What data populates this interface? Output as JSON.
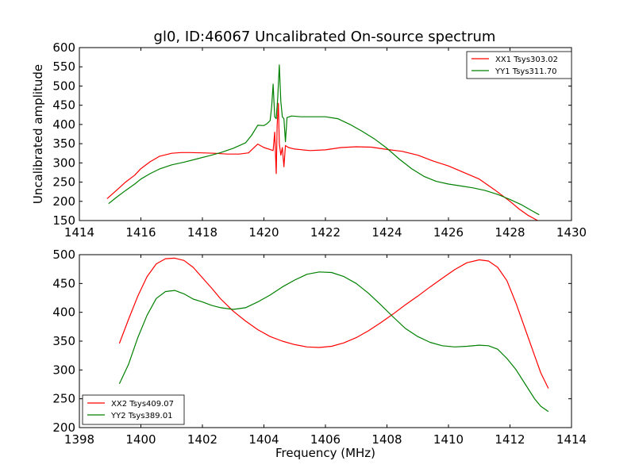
{
  "figure": {
    "title": "gl0, ID:46067 Uncalibrated On-source spectrum"
  },
  "chart_data": [
    {
      "type": "line",
      "title": "gl0, ID:46067 Uncalibrated On-source spectrum",
      "xlabel": "",
      "ylabel": "Uncalibrated amplitude",
      "xlim": [
        1414,
        1430
      ],
      "ylim": [
        150,
        600
      ],
      "xticks": [
        1414,
        1416,
        1418,
        1420,
        1422,
        1424,
        1426,
        1428,
        1430
      ],
      "yticks": [
        150,
        200,
        250,
        300,
        350,
        400,
        450,
        500,
        550,
        600
      ],
      "grid": false,
      "legend_position": "top-right",
      "series": [
        {
          "name": "XX1 Tsys303.02",
          "color": "#ff0000",
          "x": [
            1414.9,
            1415.2,
            1415.5,
            1415.8,
            1416.0,
            1416.3,
            1416.6,
            1417.0,
            1417.3,
            1417.6,
            1418.0,
            1418.4,
            1418.8,
            1419.2,
            1419.5,
            1419.8,
            1420.0,
            1420.2,
            1420.3,
            1420.35,
            1420.4,
            1420.43,
            1420.47,
            1420.5,
            1420.55,
            1420.6,
            1420.65,
            1420.7,
            1420.8,
            1421.0,
            1421.5,
            1422.0,
            1422.5,
            1423.0,
            1423.5,
            1424.0,
            1424.5,
            1425.0,
            1425.5,
            1426.0,
            1426.5,
            1427.0,
            1427.5,
            1428.0,
            1428.3,
            1428.6,
            1428.9
          ],
          "y": [
            207,
            228,
            250,
            268,
            285,
            303,
            317,
            325,
            327,
            327,
            326,
            325,
            323,
            323,
            326,
            349,
            340,
            335,
            332,
            380,
            272,
            400,
            455,
            350,
            320,
            340,
            290,
            345,
            340,
            336,
            332,
            334,
            340,
            342,
            341,
            335,
            330,
            320,
            305,
            292,
            275,
            258,
            230,
            200,
            180,
            163,
            150
          ]
        },
        {
          "name": "YY1 Tsys311.70",
          "color": "#008000",
          "x": [
            1414.95,
            1415.2,
            1415.5,
            1415.8,
            1416.0,
            1416.3,
            1416.6,
            1417.0,
            1417.4,
            1417.8,
            1418.2,
            1418.6,
            1419.0,
            1419.4,
            1419.6,
            1419.8,
            1420.0,
            1420.1,
            1420.2,
            1420.25,
            1420.3,
            1420.35,
            1420.4,
            1420.45,
            1420.5,
            1420.55,
            1420.6,
            1420.65,
            1420.7,
            1420.75,
            1420.9,
            1421.2,
            1421.6,
            1422.0,
            1422.4,
            1422.8,
            1423.2,
            1423.6,
            1424.0,
            1424.4,
            1424.8,
            1425.2,
            1425.6,
            1426.0,
            1426.4,
            1426.8,
            1427.2,
            1427.6,
            1428.0,
            1428.4,
            1428.7,
            1428.95
          ],
          "y": [
            194,
            210,
            228,
            245,
            258,
            272,
            284,
            295,
            302,
            310,
            318,
            327,
            338,
            352,
            372,
            398,
            397,
            402,
            410,
            445,
            505,
            420,
            415,
            470,
            555,
            460,
            420,
            415,
            355,
            418,
            422,
            420,
            420,
            420,
            415,
            400,
            382,
            362,
            338,
            310,
            285,
            265,
            252,
            245,
            240,
            235,
            228,
            218,
            205,
            190,
            176,
            165
          ]
        }
      ]
    },
    {
      "type": "line",
      "title": "",
      "xlabel": "Frequency (MHz)",
      "ylabel": "",
      "xlim": [
        1398,
        1414
      ],
      "ylim": [
        200,
        500
      ],
      "xticks": [
        1398,
        1400,
        1402,
        1404,
        1406,
        1408,
        1410,
        1412,
        1414
      ],
      "yticks": [
        200,
        250,
        300,
        350,
        400,
        450,
        500
      ],
      "grid": false,
      "legend_position": "bottom-left",
      "series": [
        {
          "name": "XX2 Tsys409.07",
          "color": "#ff0000",
          "x": [
            1399.3,
            1399.6,
            1399.9,
            1400.2,
            1400.5,
            1400.8,
            1401.1,
            1401.4,
            1401.7,
            1402.0,
            1402.3,
            1402.6,
            1403.0,
            1403.4,
            1403.8,
            1404.2,
            1404.6,
            1405.0,
            1405.4,
            1405.8,
            1406.2,
            1406.6,
            1407.0,
            1407.4,
            1407.8,
            1408.2,
            1408.6,
            1409.0,
            1409.4,
            1409.8,
            1410.2,
            1410.6,
            1411.0,
            1411.3,
            1411.6,
            1411.9,
            1412.2,
            1412.5,
            1412.8,
            1413.0,
            1413.25
          ],
          "y": [
            346,
            388,
            428,
            462,
            484,
            493,
            494,
            490,
            478,
            460,
            442,
            423,
            402,
            385,
            370,
            358,
            350,
            344,
            340,
            339,
            341,
            347,
            356,
            368,
            382,
            397,
            413,
            428,
            444,
            459,
            474,
            486,
            491,
            489,
            478,
            455,
            415,
            370,
            325,
            295,
            268
          ]
        },
        {
          "name": "YY2 Tsys389.01",
          "color": "#008000",
          "x": [
            1399.3,
            1399.6,
            1399.9,
            1400.2,
            1400.5,
            1400.8,
            1401.1,
            1401.4,
            1401.7,
            1402.0,
            1402.3,
            1402.6,
            1403.0,
            1403.4,
            1403.8,
            1404.2,
            1404.6,
            1405.0,
            1405.4,
            1405.8,
            1406.2,
            1406.6,
            1407.0,
            1407.4,
            1407.8,
            1408.2,
            1408.6,
            1409.0,
            1409.4,
            1409.8,
            1410.2,
            1410.6,
            1411.0,
            1411.3,
            1411.6,
            1411.9,
            1412.2,
            1412.5,
            1412.8,
            1413.0,
            1413.25
          ],
          "y": [
            276,
            310,
            356,
            395,
            424,
            436,
            438,
            432,
            423,
            418,
            412,
            408,
            405,
            408,
            418,
            430,
            444,
            456,
            466,
            470,
            469,
            462,
            450,
            433,
            413,
            392,
            372,
            358,
            348,
            342,
            340,
            341,
            343,
            342,
            336,
            320,
            300,
            275,
            250,
            237,
            228
          ]
        }
      ]
    }
  ]
}
